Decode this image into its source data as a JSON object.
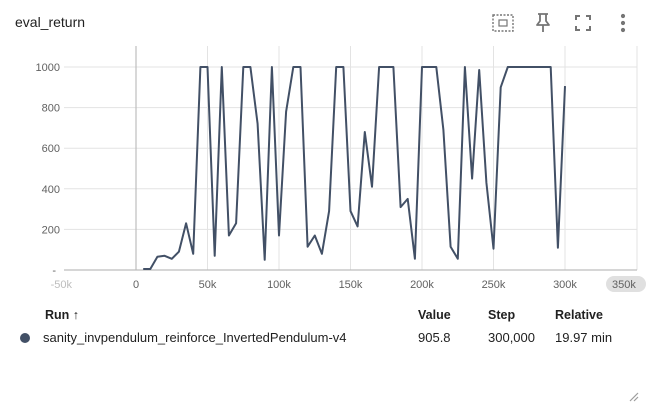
{
  "header": {
    "title": "eval_return",
    "icons": [
      "fit-domain-icon",
      "pin-icon",
      "fullscreen-icon",
      "more-vert-icon"
    ]
  },
  "chart_data": {
    "type": "line",
    "title": "eval_return",
    "xlabel": "",
    "ylabel": "",
    "xlim": [
      -50000,
      350000
    ],
    "ylim": [
      0,
      1000
    ],
    "x_ticks": [
      "0",
      "50k",
      "100k",
      "150k",
      "200k",
      "250k",
      "300k"
    ],
    "x_tick_values": [
      0,
      50000,
      100000,
      150000,
      200000,
      250000,
      300000
    ],
    "x_edge_labels": {
      "left": "-50k",
      "right": "350k"
    },
    "y_ticks": [
      "200",
      "400",
      "600",
      "800",
      "1000"
    ],
    "y_tick_values": [
      200,
      400,
      600,
      800,
      1000
    ],
    "grid": true,
    "series": [
      {
        "name": "sanity_invpendulum_reinforce_InvertedPendulum-v4",
        "color": "#425066",
        "x": [
          5000,
          10000,
          15000,
          20000,
          25000,
          30000,
          35000,
          40000,
          45000,
          50000,
          55000,
          60000,
          65000,
          70000,
          75000,
          80000,
          85000,
          90000,
          95000,
          100000,
          105000,
          110000,
          115000,
          120000,
          125000,
          130000,
          135000,
          140000,
          145000,
          150000,
          155000,
          160000,
          165000,
          170000,
          175000,
          180000,
          185000,
          190000,
          195000,
          200000,
          205000,
          210000,
          215000,
          220000,
          225000,
          230000,
          235000,
          240000,
          245000,
          250000,
          255000,
          260000,
          265000,
          270000,
          275000,
          280000,
          285000,
          290000,
          295000,
          300000
        ],
        "y": [
          5,
          5,
          65,
          70,
          55,
          90,
          230,
          80,
          1000,
          1000,
          70,
          1000,
          170,
          230,
          1000,
          1000,
          720,
          50,
          1000,
          170,
          780,
          1000,
          1000,
          115,
          170,
          80,
          290,
          1000,
          1000,
          290,
          215,
          680,
          410,
          1000,
          1000,
          1000,
          310,
          350,
          55,
          1000,
          1000,
          1000,
          690,
          115,
          55,
          1000,
          450,
          985,
          430,
          105,
          900,
          1000,
          1000,
          1000,
          1000,
          1000,
          1000,
          1000,
          110,
          906
        ]
      }
    ]
  },
  "table": {
    "headers": {
      "run": "Run ↑",
      "value": "Value",
      "step": "Step",
      "relative": "Relative"
    },
    "rows": [
      {
        "color": "#425066",
        "run": "sanity_invpendulum_reinforce_InvertedPendulum-v4",
        "value": "905.8",
        "step": "300,000",
        "relative": "19.97 min"
      }
    ]
  }
}
